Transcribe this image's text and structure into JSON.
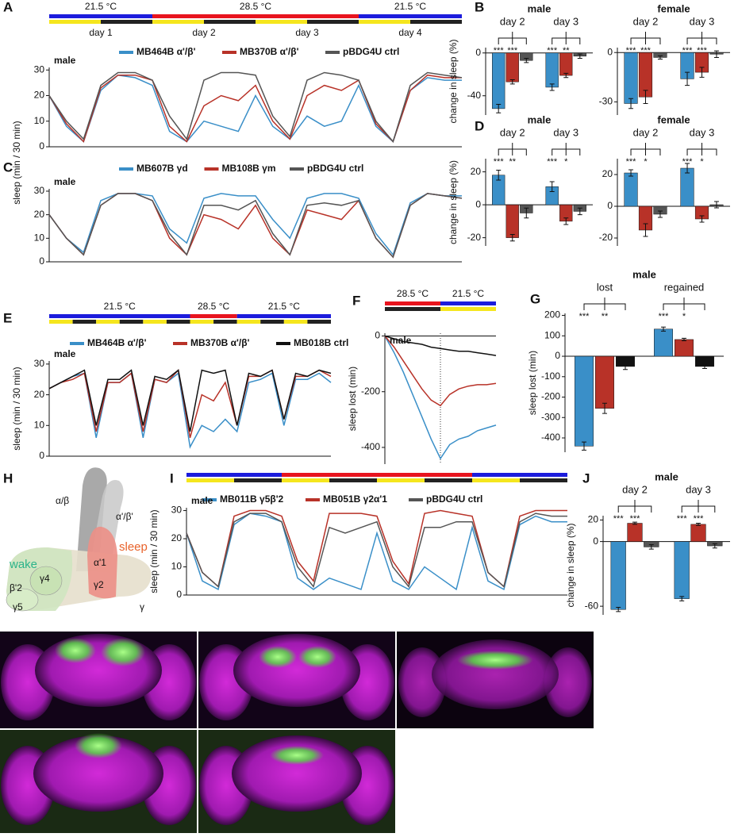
{
  "chart_data": [
    {
      "type": "line",
      "panel": "A",
      "ylabel": "sleep (min / 30 min)",
      "annotation": "male",
      "xlim": [
        0,
        96
      ],
      "ylim": [
        0,
        31
      ],
      "yticks": [
        0,
        10,
        20,
        30
      ],
      "temperature": [
        {
          "label": "21.5 °C",
          "color": "#1c1cdc",
          "from": 0,
          "to": 24
        },
        {
          "label": "28.5 °C",
          "color": "#e8141e",
          "from": 24,
          "to": 72
        },
        {
          "label": "21.5 °C",
          "color": "#1c1cdc",
          "from": 72,
          "to": 96
        }
      ],
      "light_period": 12,
      "light_colors": [
        "#f5e61e",
        "#222222"
      ],
      "days": [
        {
          "label": "day 1",
          "from": 0,
          "to": 24
        },
        {
          "label": "day 2",
          "from": 24,
          "to": 48
        },
        {
          "label": "day 3",
          "from": 48,
          "to": 72
        },
        {
          "label": "day 4",
          "from": 72,
          "to": 96
        }
      ],
      "x": [
        0,
        4,
        8,
        12,
        16,
        20,
        24,
        28,
        32,
        36,
        40,
        44,
        48,
        52,
        56,
        60,
        64,
        68,
        72,
        76,
        80,
        84,
        88,
        92,
        96
      ],
      "series": [
        {
          "name": "MB464B α'/β'",
          "color": "#3a8fc8",
          "values": [
            20,
            8,
            2,
            22,
            28,
            27,
            24,
            6,
            2,
            10,
            8,
            6,
            20,
            8,
            3,
            12,
            8,
            10,
            24,
            8,
            2,
            22,
            27,
            26,
            26
          ]
        },
        {
          "name": "MB370B α'/β'",
          "color": "#b83228",
          "values": [
            20,
            9,
            2,
            23,
            28,
            28,
            26,
            8,
            2,
            16,
            20,
            18,
            24,
            10,
            3,
            20,
            24,
            22,
            26,
            9,
            2,
            22,
            28,
            27,
            27
          ]
        },
        {
          "name": "pBDG4U ctrl",
          "color": "#555555",
          "values": [
            20,
            10,
            3,
            24,
            29,
            29,
            26,
            12,
            3,
            26,
            29,
            29,
            28,
            12,
            4,
            26,
            29,
            28,
            26,
            10,
            2,
            24,
            29,
            28,
            27
          ]
        }
      ]
    },
    {
      "type": "bar",
      "panel": "B",
      "title": "male",
      "ylabel": "change in sleep (%)",
      "categories": [
        "day 2",
        "day 3"
      ],
      "ylim": [
        -58,
        5
      ],
      "yticks": [
        -40,
        0
      ],
      "series": [
        {
          "color": "#3a8fc8",
          "values": [
            -52,
            -32
          ],
          "errors": [
            4,
            3
          ],
          "sig": [
            "***",
            "***"
          ]
        },
        {
          "color": "#b83228",
          "values": [
            -27,
            -21
          ],
          "errors": [
            2,
            2
          ],
          "sig": [
            "***",
            "**"
          ]
        },
        {
          "color": "#555555",
          "values": [
            -7,
            -3
          ],
          "errors": [
            2,
            2
          ]
        }
      ]
    },
    {
      "type": "bar",
      "title": "female",
      "categories": [
        "day 2",
        "day 3"
      ],
      "ylim": [
        -38,
        3
      ],
      "yticks": [
        -30,
        0
      ],
      "series": [
        {
          "color": "#3a8fc8",
          "values": [
            -31,
            -16
          ],
          "errors": [
            3,
            4
          ],
          "sig": [
            "***",
            "***"
          ]
        },
        {
          "color": "#b83228",
          "values": [
            -27,
            -12
          ],
          "errors": [
            4,
            3
          ],
          "sig": [
            "***",
            "***"
          ]
        },
        {
          "color": "#555555",
          "values": [
            -3,
            -1
          ],
          "errors": [
            1,
            2
          ]
        }
      ]
    },
    {
      "type": "line",
      "panel": "C",
      "annotation": "male",
      "xlim": [
        0,
        96
      ],
      "ylim": [
        0,
        31
      ],
      "yticks": [
        0,
        10,
        20,
        30
      ],
      "x": [
        0,
        4,
        8,
        12,
        16,
        20,
        24,
        28,
        32,
        36,
        40,
        44,
        48,
        52,
        56,
        60,
        64,
        68,
        72,
        76,
        80,
        84,
        88,
        92,
        96
      ],
      "series": [
        {
          "name": "MB607B γd",
          "color": "#3a8fc8",
          "values": [
            20,
            10,
            4,
            26,
            29,
            29,
            28,
            14,
            8,
            27,
            29,
            28,
            28,
            18,
            10,
            27,
            29,
            29,
            27,
            12,
            3,
            25,
            29,
            28,
            28
          ]
        },
        {
          "name": "MB108B γm",
          "color": "#b83228",
          "values": [
            20,
            10,
            3,
            24,
            29,
            29,
            26,
            10,
            3,
            20,
            18,
            14,
            24,
            10,
            3,
            22,
            20,
            18,
            26,
            10,
            2,
            24,
            29,
            28,
            27
          ]
        },
        {
          "name": "pBDG4U ctrl",
          "color": "#555555",
          "values": [
            20,
            10,
            3,
            24,
            29,
            29,
            26,
            12,
            3,
            24,
            24,
            22,
            26,
            12,
            3,
            24,
            25,
            24,
            26,
            10,
            2,
            24,
            29,
            28,
            27
          ]
        }
      ]
    },
    {
      "type": "bar",
      "panel": "D",
      "title": "male",
      "ylabel": "change in sleep (%)",
      "categories": [
        "day 2",
        "day 3"
      ],
      "ylim": [
        -25,
        28
      ],
      "yticks": [
        -20,
        0,
        20
      ],
      "series": [
        {
          "color": "#3a8fc8",
          "values": [
            18,
            11
          ],
          "errors": [
            3,
            3
          ],
          "sig": [
            "***",
            "***"
          ]
        },
        {
          "color": "#b83228",
          "values": [
            -20,
            -10
          ],
          "errors": [
            2,
            2
          ],
          "sig": [
            "**",
            "*"
          ]
        },
        {
          "color": "#555555",
          "values": [
            -5,
            -4
          ],
          "errors": [
            3,
            2
          ]
        }
      ]
    },
    {
      "type": "bar",
      "title": "female",
      "categories": [
        "day 2",
        "day 3"
      ],
      "ylim": [
        -25,
        30
      ],
      "yticks": [
        -20,
        0,
        20
      ],
      "series": [
        {
          "color": "#3a8fc8",
          "values": [
            21,
            24
          ],
          "errors": [
            2,
            3
          ],
          "sig": [
            "***",
            "***"
          ]
        },
        {
          "color": "#b83228",
          "values": [
            -15,
            -8
          ],
          "errors": [
            4,
            2
          ],
          "sig": [
            "*",
            "*"
          ]
        },
        {
          "color": "#555555",
          "values": [
            -5,
            1
          ],
          "errors": [
            2,
            2
          ]
        }
      ]
    },
    {
      "type": "line",
      "panel": "E",
      "ylabel": "sleep (min / 30 min)",
      "annotation": "male",
      "xlim": [
        0,
        144
      ],
      "ylim": [
        0,
        31
      ],
      "yticks": [
        0,
        10,
        20,
        30
      ],
      "temperature": [
        {
          "label": "21.5 °C",
          "color": "#1c1cdc",
          "from": 0,
          "to": 72
        },
        {
          "label": "28.5 °C",
          "color": "#e8141e",
          "from": 72,
          "to": 96
        },
        {
          "label": "21.5 °C",
          "color": "#1c1cdc",
          "from": 96,
          "to": 144
        }
      ],
      "light_period": 12,
      "light_colors": [
        "#f5e61e",
        "#222222"
      ],
      "x": [
        0,
        6,
        12,
        18,
        24,
        30,
        36,
        42,
        48,
        54,
        60,
        66,
        72,
        78,
        84,
        90,
        96,
        102,
        108,
        114,
        120,
        126,
        132,
        138,
        144
      ],
      "series": [
        {
          "name": "MB464B α'/β'",
          "color": "#3a8fc8",
          "values": [
            22,
            24,
            26,
            27,
            6,
            24,
            24,
            27,
            6,
            25,
            24,
            27,
            3,
            10,
            8,
            12,
            8,
            24,
            25,
            27,
            10,
            25,
            25,
            27,
            24
          ]
        },
        {
          "name": "MB370B α'/β'",
          "color": "#b83228",
          "values": [
            22,
            24,
            25,
            27,
            8,
            24,
            24,
            27,
            8,
            25,
            24,
            28,
            6,
            20,
            18,
            24,
            10,
            26,
            26,
            28,
            12,
            26,
            26,
            28,
            26
          ]
        },
        {
          "name": "MB018B ctrl",
          "color": "#111111",
          "values": [
            22,
            24,
            26,
            28,
            10,
            25,
            25,
            28,
            10,
            26,
            25,
            28,
            8,
            28,
            27,
            28,
            10,
            27,
            26,
            28,
            12,
            27,
            26,
            28,
            27
          ]
        }
      ]
    },
    {
      "type": "line",
      "panel": "F",
      "ylabel": "sleep lost (min)",
      "annotation": "male",
      "divider": true,
      "xlim": [
        0,
        48
      ],
      "ylim": [
        -460,
        10
      ],
      "yticks": [
        -400,
        -200,
        0
      ],
      "temperature": [
        {
          "label": "28.5 °C",
          "color": "#e8141e",
          "from": 0,
          "to": 24
        },
        {
          "label": "21.5 °C",
          "color": "#1c1cdc",
          "from": 24,
          "to": 48
        }
      ],
      "light_period": 24,
      "light_colors": [
        "#222222",
        "#f5e61e"
      ],
      "x": [
        0,
        4,
        8,
        12,
        16,
        20,
        24,
        28,
        32,
        36,
        40,
        44,
        48
      ],
      "series": [
        {
          "color": "#3a8fc8",
          "values": [
            0,
            -60,
            -130,
            -210,
            -290,
            -370,
            -440,
            -390,
            -370,
            -360,
            -340,
            -330,
            -320
          ]
        },
        {
          "color": "#b83228",
          "values": [
            0,
            -40,
            -90,
            -140,
            -190,
            -230,
            -250,
            -210,
            -190,
            -180,
            -175,
            -175,
            -170
          ]
        },
        {
          "color": "#111111",
          "values": [
            0,
            -10,
            -20,
            -25,
            -30,
            -40,
            -45,
            -50,
            -55,
            -55,
            -60,
            -65,
            -70
          ]
        }
      ]
    },
    {
      "type": "bar",
      "panel": "G",
      "title": "male",
      "ylabel": "sleep lost (min)",
      "categories": [
        "lost",
        "regained"
      ],
      "ylim": [
        -470,
        210
      ],
      "yticks": [
        -400,
        -300,
        -200,
        -100,
        0,
        100,
        200
      ],
      "series": [
        {
          "color": "#3a8fc8",
          "values": [
            -440,
            133
          ],
          "errors": [
            20,
            10
          ],
          "sig": [
            "***",
            "***"
          ]
        },
        {
          "color": "#b83228",
          "values": [
            -255,
            82
          ],
          "errors": [
            25,
            6
          ],
          "sig": [
            "**",
            "*"
          ]
        },
        {
          "color": "#111111",
          "values": [
            -50,
            -50
          ],
          "errors": [
            15,
            10
          ]
        }
      ]
    },
    {
      "type": "line",
      "panel": "I",
      "ylabel": "sleep (min / 30 min)",
      "annotation": "male",
      "xlim": [
        0,
        96
      ],
      "ylim": [
        0,
        31
      ],
      "yticks": [
        0,
        10,
        20,
        30
      ],
      "temperature": [
        {
          "color": "#1c1cdc",
          "from": 0,
          "to": 24
        },
        {
          "color": "#e8141e",
          "from": 24,
          "to": 72
        },
        {
          "color": "#1c1cdc",
          "from": 72,
          "to": 96
        }
      ],
      "light_period": 12,
      "light_colors": [
        "#f5e61e",
        "#222222"
      ],
      "x": [
        0,
        4,
        8,
        12,
        16,
        20,
        24,
        28,
        32,
        36,
        40,
        44,
        48,
        52,
        56,
        60,
        64,
        68,
        72,
        76,
        80,
        84,
        88,
        92,
        96
      ],
      "series": [
        {
          "name": "MB011B γ5β'2",
          "color": "#3a8fc8",
          "values": [
            22,
            5,
            2,
            25,
            29,
            28,
            26,
            6,
            2,
            6,
            4,
            2,
            22,
            5,
            2,
            10,
            6,
            2,
            24,
            5,
            2,
            25,
            28,
            26,
            26
          ]
        },
        {
          "name": "MB051B γ2α'1",
          "color": "#b83228",
          "values": [
            22,
            8,
            3,
            28,
            30,
            30,
            28,
            12,
            5,
            29,
            29,
            29,
            28,
            12,
            4,
            29,
            30,
            29,
            28,
            8,
            3,
            28,
            30,
            30,
            30
          ]
        },
        {
          "name": "pBDG4U ctrl",
          "color": "#555555",
          "values": [
            22,
            8,
            3,
            26,
            29,
            29,
            26,
            10,
            3,
            24,
            22,
            24,
            26,
            10,
            3,
            24,
            24,
            26,
            26,
            8,
            3,
            26,
            29,
            28,
            28
          ]
        }
      ]
    },
    {
      "type": "bar",
      "panel": "J",
      "title": "male",
      "ylabel": "change in sleep (%)",
      "categories": [
        "day 2",
        "day 3"
      ],
      "ylim": [
        -68,
        24
      ],
      "yticks": [
        -60,
        0,
        20
      ],
      "series": [
        {
          "color": "#3a8fc8",
          "values": [
            -63,
            -53
          ],
          "errors": [
            2,
            2
          ],
          "sig": [
            "***",
            "***"
          ]
        },
        {
          "color": "#b83228",
          "values": [
            17,
            16
          ],
          "errors": [
            1,
            1
          ],
          "sig": [
            "***",
            "***"
          ]
        },
        {
          "color": "#555555",
          "values": [
            -5,
            -4
          ],
          "errors": [
            2,
            2
          ]
        }
      ]
    }
  ],
  "diagram": {
    "panel": "H",
    "labels": [
      "α/β",
      "α'/β'",
      "wake",
      "sleep",
      "β'2",
      "γ4",
      "γ5",
      "α'1",
      "γ2",
      "γ"
    ]
  }
}
